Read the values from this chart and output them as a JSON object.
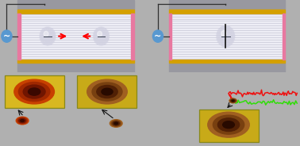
{
  "bg_yellow": "#f2d060",
  "panel_bg": "#c8c8cc",
  "gold_bar": "#d4a000",
  "pink_bar": "#e878a0",
  "line_color": "#c8c8d8",
  "electrode_color": "#5898d0",
  "wire_color": "#303030",
  "fig_width": 3.78,
  "fig_height": 1.84,
  "gap_color": "#e0e0e8",
  "droplet_schematic_color": "#b8b8c8",
  "inset_bg": "#d8b820",
  "inset_edge": "#888818"
}
